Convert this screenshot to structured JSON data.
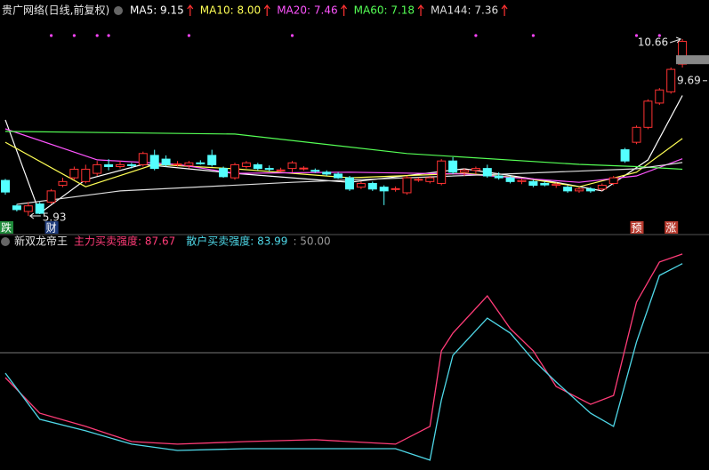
{
  "chart_data": [
    {
      "type": "candlestick",
      "title": "贵广网络(日线,前复权)",
      "candles": {
        "open": [
          6.88,
          6.2,
          6.05,
          6.25,
          6.3,
          6.75,
          6.95,
          6.85,
          7.07,
          7.3,
          7.25,
          7.3,
          7.3,
          7.55,
          7.45,
          7.3,
          7.28,
          7.35,
          7.55,
          7.2,
          6.95,
          7.25,
          7.3,
          7.2,
          7.15,
          7.2,
          7.2,
          7.15,
          7.1,
          7.05,
          6.95,
          6.7,
          6.8,
          6.7,
          6.65,
          6.55,
          6.9,
          6.85,
          6.8,
          7.4,
          7.1,
          7.15,
          7.2,
          7.0,
          6.95,
          6.85,
          6.85,
          6.8,
          6.75,
          6.7,
          6.6,
          6.65,
          6.65,
          6.8,
          7.7,
          7.9,
          8.3,
          8.95,
          9.25,
          9.99
        ],
        "high": [
          6.92,
          6.25,
          6.3,
          6.3,
          6.65,
          6.95,
          7.25,
          7.3,
          7.4,
          7.45,
          7.4,
          7.35,
          7.65,
          7.7,
          7.55,
          7.4,
          7.4,
          7.42,
          7.7,
          7.25,
          7.35,
          7.4,
          7.35,
          7.28,
          7.22,
          7.4,
          7.26,
          7.2,
          7.15,
          7.1,
          7.0,
          6.85,
          6.85,
          6.75,
          6.72,
          7.0,
          6.96,
          7.0,
          7.45,
          7.5,
          7.2,
          7.25,
          7.3,
          7.1,
          7.0,
          6.92,
          6.9,
          6.85,
          6.82,
          6.75,
          6.7,
          6.7,
          6.8,
          7.0,
          7.75,
          8.35,
          9.05,
          9.35,
          9.9,
          10.66
        ],
        "low": [
          6.5,
          6.05,
          5.93,
          5.98,
          6.25,
          6.7,
          6.9,
          6.8,
          7.0,
          7.15,
          7.2,
          7.2,
          7.25,
          7.15,
          7.25,
          7.25,
          7.2,
          7.3,
          7.25,
          6.95,
          6.9,
          7.2,
          7.15,
          7.12,
          7.1,
          7.1,
          7.14,
          7.08,
          7.0,
          6.92,
          6.6,
          6.65,
          6.6,
          6.22,
          6.58,
          6.5,
          6.84,
          6.8,
          6.75,
          7.05,
          7.0,
          7.05,
          6.95,
          6.9,
          6.8,
          6.78,
          6.7,
          6.72,
          6.68,
          6.55,
          6.55,
          6.55,
          6.6,
          6.75,
          7.35,
          7.85,
          8.25,
          8.9,
          9.2,
          9.9
        ],
        "close": [
          6.57,
          6.1,
          6.2,
          6.0,
          6.6,
          6.85,
          7.18,
          7.18,
          7.3,
          7.25,
          7.3,
          7.28,
          7.6,
          7.2,
          7.3,
          7.32,
          7.35,
          7.34,
          7.3,
          6.98,
          7.3,
          7.35,
          7.2,
          7.19,
          7.16,
          7.35,
          7.21,
          7.14,
          7.05,
          6.95,
          6.65,
          6.8,
          6.65,
          6.6,
          6.66,
          6.95,
          6.91,
          6.95,
          7.4,
          7.1,
          7.15,
          7.2,
          7.0,
          6.95,
          6.85,
          6.88,
          6.75,
          6.76,
          6.78,
          6.6,
          6.65,
          6.6,
          6.75,
          6.95,
          7.4,
          8.3,
          9.0,
          9.3,
          9.85,
          10.6
        ]
      },
      "up_color": "#ff3232",
      "down_color": "#54ffff",
      "ylim": [
        5.48,
        11.23
      ],
      "series": [
        {
          "name": "MA5: 9.15",
          "color": "#ffffff",
          "x": [
            0,
            3,
            7,
            12,
            20,
            30,
            40,
            48,
            52,
            56,
            59
          ],
          "values": [
            8.5,
            6.0,
            6.9,
            7.31,
            7.07,
            6.83,
            7.19,
            6.83,
            6.6,
            7.43,
            9.15
          ]
        },
        {
          "name": "MA10: 8.00",
          "color": "#ffff55",
          "x": [
            0,
            7,
            13,
            20,
            30,
            40,
            45,
            50,
            55,
            59
          ],
          "values": [
            7.9,
            6.71,
            7.31,
            7.19,
            6.95,
            7.07,
            6.95,
            6.71,
            7.1,
            8.0
          ]
        },
        {
          "name": "MA20: 7.46",
          "color": "#ff55ff",
          "x": [
            0,
            8,
            15,
            20,
            30,
            40,
            50,
            55,
            59
          ],
          "values": [
            8.26,
            7.43,
            7.31,
            7.07,
            7.1,
            7.05,
            6.83,
            7.0,
            7.46
          ]
        },
        {
          "name": "MA60: 7.18",
          "color": "#55ff55",
          "x": [
            0,
            20,
            35,
            50,
            55,
            59
          ],
          "values": [
            8.19,
            8.12,
            7.6,
            7.31,
            7.25,
            7.18
          ]
        },
        {
          "name": "MA144: 7.36",
          "color": "#dddddd",
          "x": [
            1,
            10,
            25,
            35,
            45,
            55,
            59
          ],
          "values": [
            6.24,
            6.6,
            6.83,
            6.95,
            7.07,
            7.19,
            7.36
          ]
        }
      ],
      "signal_markers": [
        4,
        6,
        8,
        9,
        16,
        25,
        41,
        46,
        55,
        57
      ],
      "high_label": 10.66,
      "low_label": 5.93,
      "price_tag": 9.69,
      "event_tags": [
        {
          "index": 0,
          "label": "跌",
          "color": "#1f8a3a"
        },
        {
          "index": 4,
          "label": "财",
          "color": "#1d3a7a"
        },
        {
          "index": 55,
          "label": "预",
          "color": "#b83a2e"
        },
        {
          "index": 58,
          "label": "涨",
          "color": "#b83a2e"
        }
      ]
    },
    {
      "type": "line",
      "title": "新双龙帝王",
      "ylim": [
        5.25,
        93.05
      ],
      "reference": {
        "value": 50,
        "label": ": 50.00"
      },
      "series": [
        {
          "name": "主力买卖强度: 87.67",
          "color": "#ff3c78",
          "x": [
            0,
            3,
            7,
            11,
            15,
            21,
            27,
            34,
            37,
            38,
            39,
            42,
            44,
            46,
            48,
            51,
            53,
            55,
            57,
            59
          ],
          "values": [
            40.5,
            26.9,
            21.9,
            16.1,
            15.1,
            16.1,
            16.8,
            15.1,
            21.9,
            50.7,
            57.5,
            71.7,
            59.2,
            50.7,
            37.1,
            30.3,
            33.7,
            69.3,
            84.6,
            87.67
          ]
        },
        {
          "name": "散户买卖强度: 83.99",
          "color": "#4fd8e8",
          "x": [
            0,
            3,
            7,
            11,
            15,
            21,
            27,
            34,
            37,
            38,
            39,
            42,
            44,
            46,
            48,
            51,
            53,
            55,
            57,
            59
          ],
          "values": [
            42.2,
            24.6,
            20.2,
            15.1,
            12.7,
            13.4,
            13.4,
            13.4,
            9.0,
            32.0,
            49.0,
            63.2,
            57.5,
            47.3,
            38.8,
            26.9,
            21.9,
            54.1,
            79.5,
            83.99
          ]
        }
      ]
    }
  ]
}
